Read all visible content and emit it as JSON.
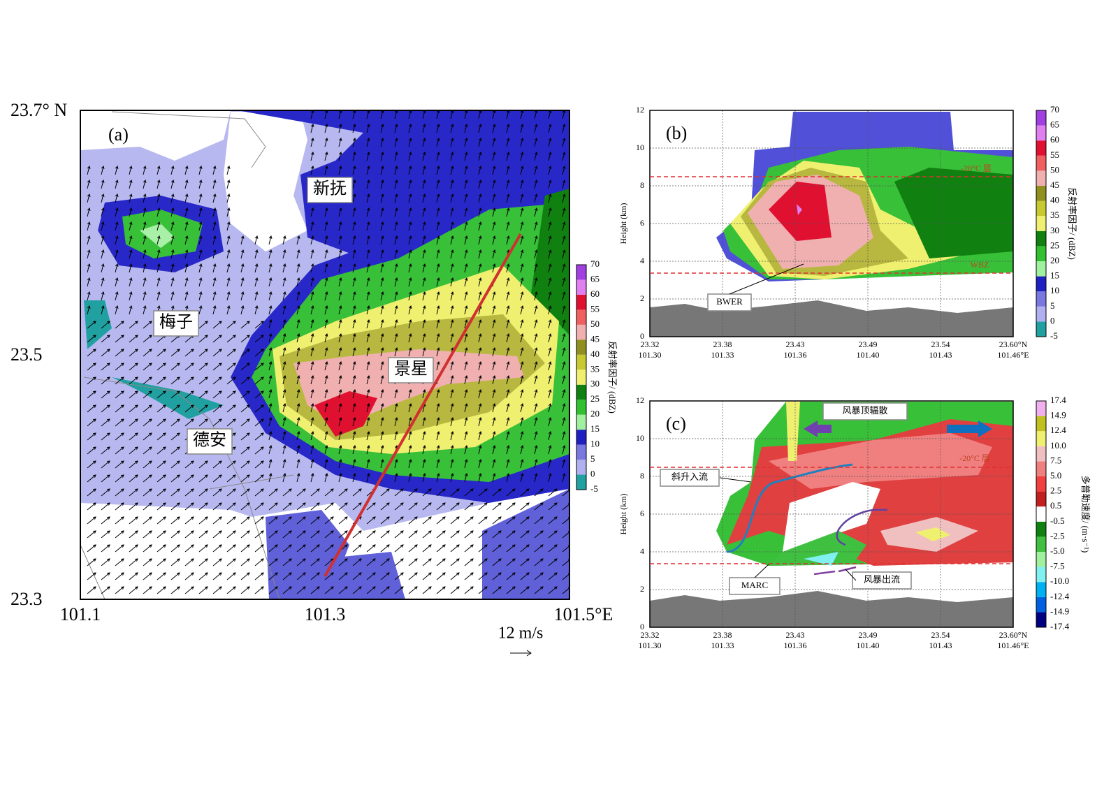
{
  "panel_a": {
    "label": "(a)",
    "lat_labels": [
      "23.7° N",
      "23.5",
      "23.3"
    ],
    "lon_labels": [
      "101.1",
      "101.3",
      "101.5°E"
    ],
    "places": [
      "新抚",
      "梅子",
      "景星",
      "德安"
    ],
    "scale_label": "12 m/s",
    "colorbar": {
      "title": "反射率因子/ (dBZ)",
      "ticks": [
        "70",
        "65",
        "60",
        "55",
        "50",
        "45",
        "40",
        "35",
        "30",
        "25",
        "20",
        "15",
        "10",
        "5",
        "0",
        "-5"
      ]
    }
  },
  "panel_b": {
    "label": "(b)",
    "y_title": "Height (km)",
    "yticks": [
      "0",
      "2",
      "4",
      "6",
      "8",
      "10",
      "12"
    ],
    "x_ticks": [
      {
        "lat": "23.32",
        "lon": "101.30"
      },
      {
        "lat": "23.38",
        "lon": "101.33"
      },
      {
        "lat": "23.43",
        "lon": "101.36"
      },
      {
        "lat": "23.49",
        "lon": "101.40"
      },
      {
        "lat": "23.54",
        "lon": "101.43"
      },
      {
        "lat": "23.60°N",
        "lon": "101.46°E"
      }
    ],
    "annotations": [
      "-20°C 层",
      "WBZ",
      "BWER"
    ],
    "colorbar": {
      "title": "反射率因子/ (dBZ)",
      "ticks": [
        "70",
        "65",
        "60",
        "55",
        "50",
        "45",
        "40",
        "35",
        "30",
        "25",
        "20",
        "15",
        "10",
        "5",
        "0",
        "-5"
      ]
    }
  },
  "panel_c": {
    "label": "(c)",
    "y_title": "Height (km)",
    "yticks": [
      "0",
      "2",
      "4",
      "6",
      "8",
      "10",
      "12"
    ],
    "x_ticks": [
      {
        "lat": "23.32",
        "lon": "101.30"
      },
      {
        "lat": "23.38",
        "lon": "101.33"
      },
      {
        "lat": "23.43",
        "lon": "101.36"
      },
      {
        "lat": "23.49",
        "lon": "101.40"
      },
      {
        "lat": "23.54",
        "lon": "101.43"
      },
      {
        "lat": "23.60°N",
        "lon": "101.46°E"
      }
    ],
    "annotations": [
      "-20°C 层",
      "风暴顶辐散",
      "斜升入流",
      "MARC",
      "风暴出流"
    ],
    "colorbar": {
      "title": "多普勒速度/ (m·s⁻¹)",
      "ticks": [
        "17.4",
        "14.9",
        "12.4",
        "10.0",
        "7.5",
        "5.0",
        "2.5",
        "0.5",
        "-0.5",
        "-2.5",
        "-5.0",
        "-7.5",
        "-10.0",
        "-12.4",
        "-14.9",
        "-17.4"
      ]
    }
  }
}
